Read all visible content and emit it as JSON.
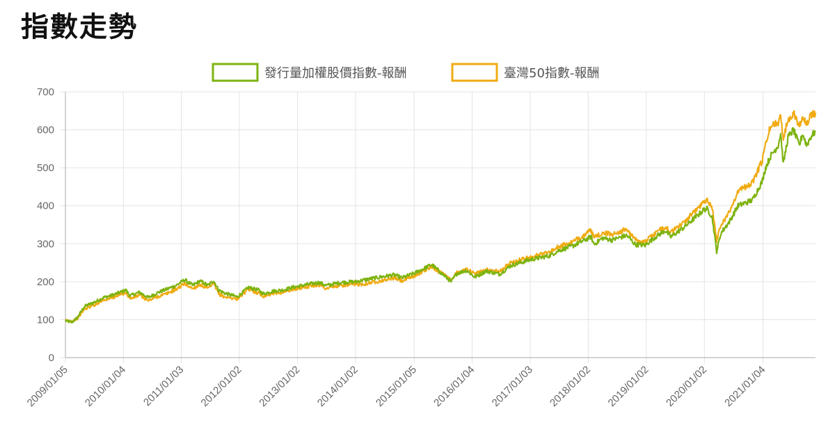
{
  "page": {
    "title": "指數走勢"
  },
  "chart_data": {
    "type": "line",
    "title": "",
    "xlabel": "",
    "ylabel": "",
    "ylim": [
      0,
      700
    ],
    "yticks": [
      0,
      100,
      200,
      300,
      400,
      500,
      600,
      700
    ],
    "xlim": [
      "2009/01/05",
      "2021/11/30"
    ],
    "xticks": [
      "2009/01/05",
      "2010/01/04",
      "2011/01/03",
      "2012/01/02",
      "2013/01/02",
      "2014/01/02",
      "2015/01/05",
      "2016/01/04",
      "2017/01/03",
      "2018/01/02",
      "2019/01/02",
      "2020/01/02",
      "2021/01/04"
    ],
    "grid": true,
    "legend_position": "top-center",
    "series": [
      {
        "name": "發行量加權股價指數-報酬",
        "color": "#7db30f",
        "points": [
          [
            "2009/01/05",
            97
          ],
          [
            "2009/02/15",
            93
          ],
          [
            "2009/03/20",
            105
          ],
          [
            "2009/05/05",
            135
          ],
          [
            "2009/07/01",
            145
          ],
          [
            "2009/09/01",
            158
          ],
          [
            "2009/11/01",
            165
          ],
          [
            "2010/01/20",
            178
          ],
          [
            "2010/02/15",
            163
          ],
          [
            "2010/04/15",
            172
          ],
          [
            "2010/06/10",
            158
          ],
          [
            "2010/08/01",
            170
          ],
          [
            "2010/10/01",
            180
          ],
          [
            "2010/12/01",
            190
          ],
          [
            "2011/01/25",
            205
          ],
          [
            "2011/03/15",
            190
          ],
          [
            "2011/05/01",
            202
          ],
          [
            "2011/06/20",
            190
          ],
          [
            "2011/07/25",
            203
          ],
          [
            "2011/08/25",
            178
          ],
          [
            "2011/10/01",
            170
          ],
          [
            "2011/12/20",
            160
          ],
          [
            "2012/03/01",
            185
          ],
          [
            "2012/05/01",
            178
          ],
          [
            "2012/06/01",
            168
          ],
          [
            "2012/08/01",
            175
          ],
          [
            "2012/10/01",
            178
          ],
          [
            "2012/12/01",
            185
          ],
          [
            "2013/02/01",
            190
          ],
          [
            "2013/05/15",
            198
          ],
          [
            "2013/07/01",
            190
          ],
          [
            "2013/10/01",
            198
          ],
          [
            "2014/01/02",
            200
          ],
          [
            "2014/03/01",
            205
          ],
          [
            "2014/06/01",
            212
          ],
          [
            "2014/09/01",
            218
          ],
          [
            "2014/10/20",
            210
          ],
          [
            "2015/01/05",
            222
          ],
          [
            "2015/04/25",
            245
          ],
          [
            "2015/08/25",
            200
          ],
          [
            "2015/10/01",
            222
          ],
          [
            "2015/12/01",
            230
          ],
          [
            "2016/01/20",
            212
          ],
          [
            "2016/04/01",
            228
          ],
          [
            "2016/06/25",
            220
          ],
          [
            "2016/09/01",
            242
          ],
          [
            "2017/01/03",
            258
          ],
          [
            "2017/05/01",
            268
          ],
          [
            "2017/07/01",
            282
          ],
          [
            "2017/10/01",
            295
          ],
          [
            "2018/01/20",
            318
          ],
          [
            "2018/02/08",
            298
          ],
          [
            "2018/04/01",
            315
          ],
          [
            "2018/06/01",
            310
          ],
          [
            "2018/09/01",
            322
          ],
          [
            "2018/10/25",
            298
          ],
          [
            "2018/12/25",
            296
          ],
          [
            "2019/03/01",
            318
          ],
          [
            "2019/05/01",
            335
          ],
          [
            "2019/06/05",
            318
          ],
          [
            "2019/09/01",
            345
          ],
          [
            "2019/12/31",
            390
          ],
          [
            "2020/01/20",
            392
          ],
          [
            "2020/02/20",
            370
          ],
          [
            "2020/03/19",
            280
          ],
          [
            "2020/04/15",
            328
          ],
          [
            "2020/06/10",
            360
          ],
          [
            "2020/07/31",
            400
          ],
          [
            "2020/10/30",
            415
          ],
          [
            "2020/12/31",
            465
          ],
          [
            "2021/01/20",
            500
          ],
          [
            "2021/02/20",
            530
          ],
          [
            "2021/04/10",
            560
          ],
          [
            "2021/04/25",
            590
          ],
          [
            "2021/05/12",
            510
          ],
          [
            "2021/06/10",
            580
          ],
          [
            "2021/07/15",
            600
          ],
          [
            "2021/08/20",
            558
          ],
          [
            "2021/09/10",
            590
          ],
          [
            "2021/10/05",
            560
          ],
          [
            "2021/11/05",
            585
          ],
          [
            "2021/11/30",
            595
          ]
        ]
      },
      {
        "name": "臺灣50指數-報酬",
        "color": "#f0ab12",
        "points": [
          [
            "2009/01/05",
            98
          ],
          [
            "2009/02/15",
            96
          ],
          [
            "2009/03/20",
            103
          ],
          [
            "2009/05/05",
            128
          ],
          [
            "2009/07/01",
            138
          ],
          [
            "2009/09/01",
            152
          ],
          [
            "2009/11/01",
            158
          ],
          [
            "2010/01/20",
            172
          ],
          [
            "2010/02/15",
            155
          ],
          [
            "2010/04/15",
            165
          ],
          [
            "2010/06/10",
            150
          ],
          [
            "2010/08/01",
            160
          ],
          [
            "2010/10/01",
            168
          ],
          [
            "2010/12/01",
            180
          ],
          [
            "2011/01/25",
            195
          ],
          [
            "2011/03/15",
            182
          ],
          [
            "2011/05/01",
            192
          ],
          [
            "2011/06/20",
            182
          ],
          [
            "2011/07/25",
            195
          ],
          [
            "2011/08/25",
            168
          ],
          [
            "2011/10/01",
            160
          ],
          [
            "2011/12/20",
            155
          ],
          [
            "2012/03/01",
            180
          ],
          [
            "2012/05/01",
            170
          ],
          [
            "2012/06/01",
            162
          ],
          [
            "2012/08/01",
            170
          ],
          [
            "2012/10/01",
            172
          ],
          [
            "2012/12/01",
            180
          ],
          [
            "2013/02/01",
            185
          ],
          [
            "2013/05/15",
            192
          ],
          [
            "2013/07/01",
            182
          ],
          [
            "2013/10/01",
            190
          ],
          [
            "2014/01/02",
            192
          ],
          [
            "2014/03/01",
            195
          ],
          [
            "2014/06/01",
            202
          ],
          [
            "2014/09/01",
            210
          ],
          [
            "2014/10/20",
            202
          ],
          [
            "2015/01/05",
            215
          ],
          [
            "2015/04/25",
            240
          ],
          [
            "2015/08/25",
            205
          ],
          [
            "2015/10/01",
            225
          ],
          [
            "2015/12/01",
            235
          ],
          [
            "2016/01/20",
            220
          ],
          [
            "2016/04/01",
            232
          ],
          [
            "2016/06/25",
            226
          ],
          [
            "2016/09/01",
            250
          ],
          [
            "2017/01/03",
            265
          ],
          [
            "2017/05/01",
            278
          ],
          [
            "2017/07/01",
            292
          ],
          [
            "2017/10/01",
            305
          ],
          [
            "2018/01/20",
            335
          ],
          [
            "2018/02/08",
            315
          ],
          [
            "2018/04/01",
            328
          ],
          [
            "2018/06/01",
            325
          ],
          [
            "2018/09/01",
            338
          ],
          [
            "2018/10/25",
            310
          ],
          [
            "2018/12/25",
            305
          ],
          [
            "2019/03/01",
            328
          ],
          [
            "2019/05/01",
            345
          ],
          [
            "2019/06/05",
            330
          ],
          [
            "2019/09/01",
            358
          ],
          [
            "2019/12/31",
            410
          ],
          [
            "2020/01/20",
            418
          ],
          [
            "2020/02/20",
            395
          ],
          [
            "2020/03/19",
            310
          ],
          [
            "2020/04/15",
            350
          ],
          [
            "2020/06/10",
            385
          ],
          [
            "2020/07/31",
            440
          ],
          [
            "2020/10/30",
            460
          ],
          [
            "2020/12/31",
            520
          ],
          [
            "2021/01/20",
            560
          ],
          [
            "2021/02/20",
            610
          ],
          [
            "2021/04/10",
            620
          ],
          [
            "2021/04/25",
            640
          ],
          [
            "2021/05/12",
            575
          ],
          [
            "2021/06/10",
            628
          ],
          [
            "2021/07/15",
            645
          ],
          [
            "2021/08/20",
            610
          ],
          [
            "2021/09/10",
            640
          ],
          [
            "2021/10/05",
            615
          ],
          [
            "2021/11/05",
            640
          ],
          [
            "2021/11/30",
            645
          ]
        ]
      }
    ]
  }
}
